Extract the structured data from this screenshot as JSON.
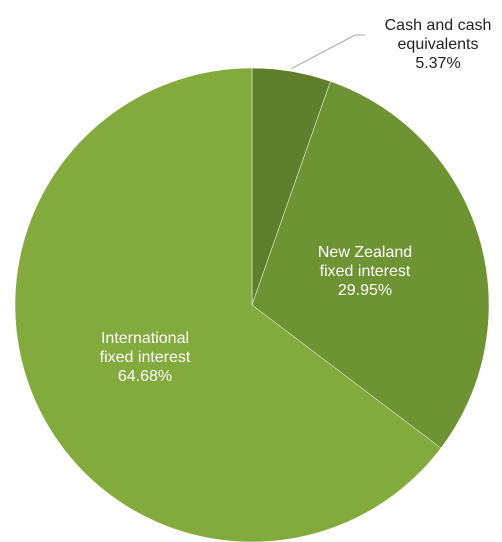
{
  "chart_data": {
    "type": "pie",
    "title": "",
    "start_angle_deg": 0,
    "direction": "clockwise",
    "legend": "none",
    "slices": [
      {
        "label_lines": [
          "Cash and cash",
          "equivalents"
        ],
        "value_label": "5.37%",
        "value": 5.37,
        "color": "#5f7f2d"
      },
      {
        "label_lines": [
          "New Zealand",
          "fixed interest"
        ],
        "value_label": "29.95%",
        "value": 29.95,
        "color": "#6e9333"
      },
      {
        "label_lines": [
          "International",
          "fixed interest"
        ],
        "value_label": "64.68%",
        "value": 64.68,
        "color": "#82aa3c"
      }
    ],
    "label_text_colors": {
      "outside": "#222222",
      "inside": "#ffffff"
    }
  }
}
